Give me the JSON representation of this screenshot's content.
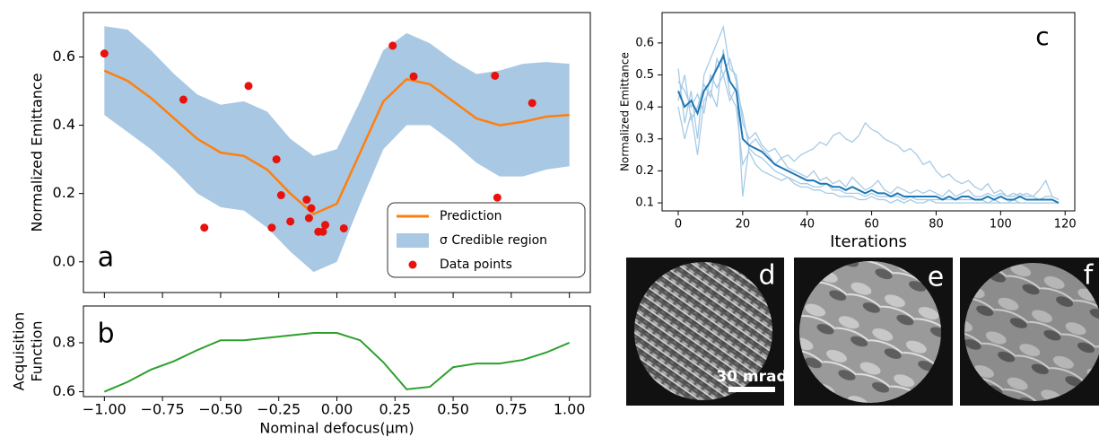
{
  "chart_data": [
    {
      "type": "line",
      "ylabel": "Normalized Emittance",
      "annotation": "a",
      "legend": "lower right",
      "xlim": [
        -1.09,
        1.09
      ],
      "ylim": [
        -0.09,
        0.73
      ],
      "yticks": [
        {
          "value": 0,
          "label": "0.0"
        },
        0.2,
        0.4,
        0.6
      ],
      "x": [
        -1.0,
        -0.9,
        -0.8,
        -0.7,
        -0.6,
        -0.5,
        -0.4,
        -0.3,
        -0.2,
        -0.1,
        0.0,
        0.1,
        0.2,
        0.3,
        0.4,
        0.5,
        0.6,
        0.7,
        0.8,
        0.9,
        1.0
      ],
      "band": {
        "name": "σ Credible region",
        "color": "#a9c8e4",
        "upper": [
          0.69,
          0.68,
          0.62,
          0.55,
          0.49,
          0.46,
          0.47,
          0.44,
          0.36,
          0.31,
          0.33,
          0.47,
          0.62,
          0.67,
          0.64,
          0.59,
          0.55,
          0.56,
          0.58,
          0.585,
          0.58
        ],
        "lower": [
          0.43,
          0.38,
          0.33,
          0.27,
          0.2,
          0.16,
          0.15,
          0.1,
          0.03,
          -0.03,
          0.0,
          0.17,
          0.33,
          0.4,
          0.4,
          0.35,
          0.29,
          0.25,
          0.25,
          0.27,
          0.28
        ]
      },
      "series": [
        {
          "name": "Prediction",
          "color": "#ff7f0e",
          "values": [
            0.56,
            0.53,
            0.48,
            0.42,
            0.36,
            0.32,
            0.31,
            0.27,
            0.2,
            0.14,
            0.17,
            0.32,
            0.47,
            0.535,
            0.52,
            0.47,
            0.42,
            0.4,
            0.41,
            0.425,
            0.43
          ]
        }
      ],
      "points": {
        "name": "Data points",
        "color": "#e8120c",
        "x": [
          -1.0,
          -0.66,
          -0.57,
          -0.38,
          -0.26,
          -0.28,
          -0.24,
          -0.2,
          -0.13,
          -0.12,
          -0.11,
          -0.08,
          -0.06,
          -0.05,
          0.03,
          0.24,
          0.33,
          0.68,
          0.69,
          0.84
        ],
        "y": [
          0.61,
          0.475,
          0.1,
          0.515,
          0.3,
          0.1,
          0.195,
          0.118,
          0.182,
          0.128,
          0.157,
          0.088,
          0.088,
          0.108,
          0.098,
          0.633,
          0.543,
          0.545,
          0.188,
          0.465
        ]
      }
    },
    {
      "type": "line",
      "ylabel": [
        "Acquisition",
        "Function"
      ],
      "xlabel": "Nominal defocus(μm)",
      "annotation": "b",
      "xlim": [
        -1.09,
        1.09
      ],
      "ylim": [
        0.58,
        0.95
      ],
      "yticks": [
        0.6,
        0.8
      ],
      "xticks": [
        {
          "value": -1,
          "label": "−1.00"
        },
        {
          "value": -0.75,
          "label": "−0.75"
        },
        {
          "value": -0.5,
          "label": "−0.50"
        },
        {
          "value": -0.25,
          "label": "−0.25"
        },
        {
          "value": 0,
          "label": "0.00"
        },
        0.25,
        {
          "value": 0.5,
          "label": "0.50"
        },
        0.75,
        {
          "value": 1,
          "label": "1.00"
        }
      ],
      "x": [
        -1.0,
        -0.9,
        -0.8,
        -0.7,
        -0.6,
        -0.5,
        -0.4,
        -0.3,
        -0.2,
        -0.1,
        0.0,
        0.1,
        0.2,
        0.3,
        0.4,
        0.5,
        0.6,
        0.7,
        0.8,
        0.9,
        1.0
      ],
      "series": [
        {
          "color": "#2ca02c",
          "values": [
            0.6,
            0.64,
            0.69,
            0.725,
            0.77,
            0.81,
            0.81,
            0.82,
            0.83,
            0.84,
            0.84,
            0.81,
            0.72,
            0.61,
            0.62,
            0.7,
            0.715,
            0.715,
            0.73,
            0.76,
            0.8
          ]
        }
      ]
    },
    {
      "type": "line",
      "ylabel": "Normalized Emittance",
      "xlabel": "Iterations",
      "annotation": "c",
      "xlim": [
        -5,
        123
      ],
      "ylim": [
        0.075,
        0.695
      ],
      "xticks": [
        0,
        20,
        40,
        60,
        80,
        100,
        120
      ],
      "yticks": [
        0.1,
        0.2,
        0.3,
        0.4,
        0.5,
        0.6
      ],
      "x": [
        0,
        2,
        4,
        6,
        8,
        10,
        12,
        14,
        16,
        18,
        20,
        22,
        24,
        26,
        28,
        30,
        32,
        34,
        36,
        38,
        40,
        42,
        44,
        46,
        48,
        50,
        52,
        54,
        56,
        58,
        60,
        62,
        64,
        66,
        68,
        70,
        72,
        74,
        76,
        78,
        80,
        82,
        84,
        86,
        88,
        90,
        92,
        94,
        96,
        98,
        100,
        102,
        104,
        106,
        108,
        110,
        112,
        114,
        116,
        118
      ],
      "series": [
        {
          "color": "#a6cbe6",
          "values": [
            0.52,
            0.35,
            0.45,
            0.3,
            0.5,
            0.55,
            0.6,
            0.65,
            0.52,
            0.5,
            0.35,
            0.3,
            0.32,
            0.28,
            0.26,
            0.27,
            0.24,
            0.25,
            0.23,
            0.25,
            0.26,
            0.27,
            0.29,
            0.28,
            0.31,
            0.32,
            0.3,
            0.29,
            0.31,
            0.35,
            0.33,
            0.32,
            0.3,
            0.29,
            0.28,
            0.26,
            0.27,
            0.25,
            0.22,
            0.23,
            0.2,
            0.18,
            0.19,
            0.17,
            0.16,
            0.17,
            0.15,
            0.14,
            0.16,
            0.13,
            0.14,
            0.12,
            0.13,
            0.12,
            0.13,
            0.12,
            0.14,
            0.17,
            0.12,
            0.11
          ]
        },
        {
          "color": "#a6cbe6",
          "values": [
            0.4,
            0.3,
            0.38,
            0.25,
            0.42,
            0.45,
            0.4,
            0.58,
            0.44,
            0.4,
            0.22,
            0.26,
            0.22,
            0.2,
            0.19,
            0.18,
            0.17,
            0.18,
            0.16,
            0.15,
            0.15,
            0.14,
            0.14,
            0.13,
            0.13,
            0.12,
            0.12,
            0.12,
            0.11,
            0.11,
            0.12,
            0.11,
            0.11,
            0.1,
            0.11,
            0.1,
            0.11,
            0.1,
            0.1,
            0.11,
            0.1,
            0.1,
            0.1,
            0.1,
            0.1,
            0.1,
            0.1,
            0.1,
            0.1,
            0.1,
            0.1,
            0.1,
            0.1,
            0.1,
            0.1,
            0.1,
            0.1,
            0.1,
            0.1,
            0.1
          ]
        },
        {
          "color": "#a6cbe6",
          "values": [
            0.48,
            0.45,
            0.4,
            0.44,
            0.38,
            0.5,
            0.46,
            0.5,
            0.55,
            0.48,
            0.12,
            0.28,
            0.3,
            0.27,
            0.25,
            0.22,
            0.24,
            0.21,
            0.2,
            0.19,
            0.18,
            0.2,
            0.17,
            0.18,
            0.16,
            0.17,
            0.15,
            0.18,
            0.16,
            0.14,
            0.15,
            0.17,
            0.14,
            0.13,
            0.15,
            0.14,
            0.13,
            0.14,
            0.13,
            0.14,
            0.13,
            0.12,
            0.14,
            0.12,
            0.13,
            0.14,
            0.12,
            0.12,
            0.13,
            0.12,
            0.13,
            0.12,
            0.12,
            0.13,
            0.12,
            0.12,
            0.11,
            0.12,
            0.12,
            0.11
          ]
        },
        {
          "color": "#a6cbe6",
          "values": [
            0.42,
            0.5,
            0.36,
            0.4,
            0.47,
            0.43,
            0.55,
            0.5,
            0.42,
            0.46,
            0.38,
            0.27,
            0.25,
            0.24,
            0.22,
            0.2,
            0.19,
            0.18,
            0.17,
            0.16,
            0.16,
            0.15,
            0.15,
            0.16,
            0.14,
            0.14,
            0.13,
            0.13,
            0.13,
            0.12,
            0.13,
            0.12,
            0.12,
            0.12,
            0.12,
            0.11,
            0.12,
            0.11,
            0.11,
            0.11,
            0.11,
            0.11,
            0.11,
            0.11,
            0.11,
            0.11,
            0.11,
            0.11,
            0.1,
            0.11,
            0.1,
            0.1,
            0.11,
            0.1,
            0.1,
            0.1,
            0.1,
            0.1,
            0.1,
            0.1
          ]
        },
        {
          "color": "#1f77b4",
          "values": [
            0.45,
            0.4,
            0.42,
            0.38,
            0.45,
            0.48,
            0.52,
            0.56,
            0.48,
            0.45,
            0.3,
            0.28,
            0.27,
            0.26,
            0.24,
            0.22,
            0.21,
            0.2,
            0.19,
            0.18,
            0.17,
            0.17,
            0.16,
            0.16,
            0.15,
            0.15,
            0.14,
            0.15,
            0.14,
            0.13,
            0.14,
            0.13,
            0.13,
            0.12,
            0.13,
            0.12,
            0.12,
            0.12,
            0.12,
            0.12,
            0.12,
            0.11,
            0.12,
            0.11,
            0.12,
            0.12,
            0.11,
            0.11,
            0.12,
            0.11,
            0.12,
            0.11,
            0.11,
            0.12,
            0.11,
            0.11,
            0.11,
            0.11,
            0.11,
            0.1
          ]
        }
      ]
    }
  ],
  "images": {
    "panels": [
      {
        "label": "d"
      },
      {
        "label": "e"
      },
      {
        "label": "f"
      }
    ],
    "scale_bar": "30 mrad"
  }
}
